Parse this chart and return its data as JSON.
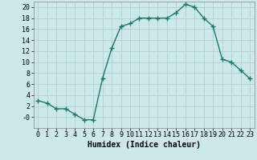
{
  "x": [
    0,
    1,
    2,
    3,
    4,
    5,
    6,
    7,
    8,
    9,
    10,
    11,
    12,
    13,
    14,
    15,
    16,
    17,
    18,
    19,
    20,
    21,
    22,
    23
  ],
  "y": [
    3,
    2.5,
    1.5,
    1.5,
    0.5,
    -0.5,
    -0.5,
    7,
    12.5,
    16.5,
    17,
    18,
    18,
    18,
    18,
    19,
    20.5,
    20,
    18,
    16.5,
    10.5,
    10,
    8.5,
    7
  ],
  "line_color": "#1a7a6e",
  "marker_color": "#1a7a6e",
  "bg_color": "#cce8e8",
  "grid_color": "#b0cfcf",
  "xlabel": "Humidex (Indice chaleur)",
  "xlim": [
    -0.5,
    23.5
  ],
  "ylim": [
    -2,
    21
  ],
  "yticks": [
    0,
    2,
    4,
    6,
    8,
    10,
    12,
    14,
    16,
    18,
    20
  ],
  "xticks": [
    0,
    1,
    2,
    3,
    4,
    5,
    6,
    7,
    8,
    9,
    10,
    11,
    12,
    13,
    14,
    15,
    16,
    17,
    18,
    19,
    20,
    21,
    22,
    23
  ],
  "label_fontsize": 7,
  "tick_fontsize": 6
}
